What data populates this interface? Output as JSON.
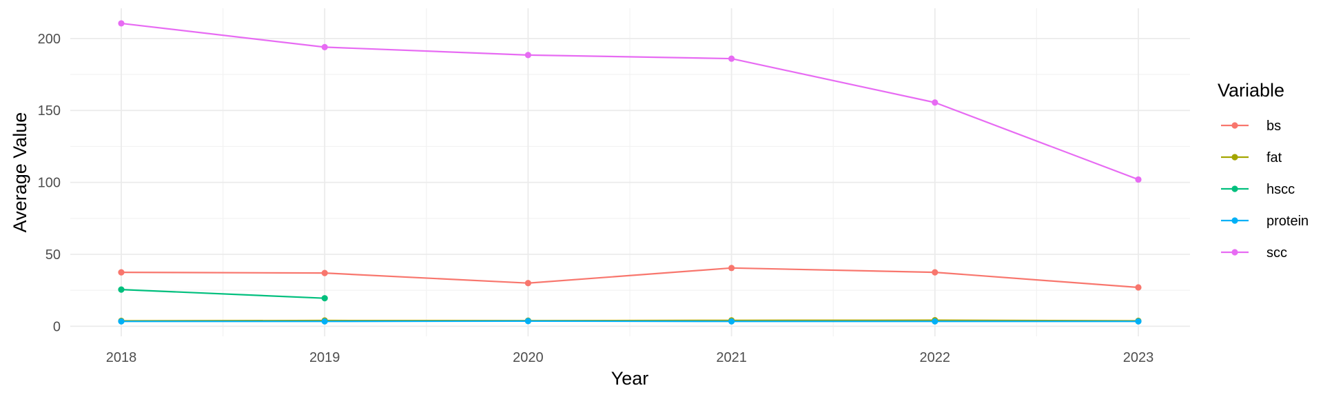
{
  "chart_data": {
    "type": "line",
    "title": "",
    "xlabel": "Year",
    "ylabel": "Average Value",
    "x": [
      "2018",
      "2019",
      "2020",
      "2021",
      "2022",
      "2023"
    ],
    "x_ticks": [
      "2018",
      "2019",
      "2020",
      "2021",
      "2022",
      "2023"
    ],
    "y_ticks": [
      "0",
      "50",
      "100",
      "150",
      "200"
    ],
    "ylim": [
      -7,
      221
    ],
    "grid": true,
    "legend_placement": "right",
    "legend_title": "Variable",
    "series": [
      {
        "name": "bs",
        "color": "#F8766D",
        "values": [
          37.5,
          37.0,
          30.0,
          40.5,
          37.5,
          27.0
        ]
      },
      {
        "name": "fat",
        "color": "#A3A500",
        "values": [
          3.8,
          4.0,
          3.9,
          4.1,
          4.2,
          3.8
        ]
      },
      {
        "name": "hscc",
        "color": "#00BF7D",
        "values": [
          25.5,
          19.5,
          null,
          null,
          null,
          null
        ]
      },
      {
        "name": "protein",
        "color": "#00B0F6",
        "values": [
          3.4,
          3.4,
          3.6,
          3.4,
          3.4,
          3.4
        ]
      },
      {
        "name": "scc",
        "color": "#E76BF3",
        "values": [
          210.5,
          194.0,
          188.5,
          186.0,
          155.5,
          102.0
        ]
      }
    ]
  }
}
